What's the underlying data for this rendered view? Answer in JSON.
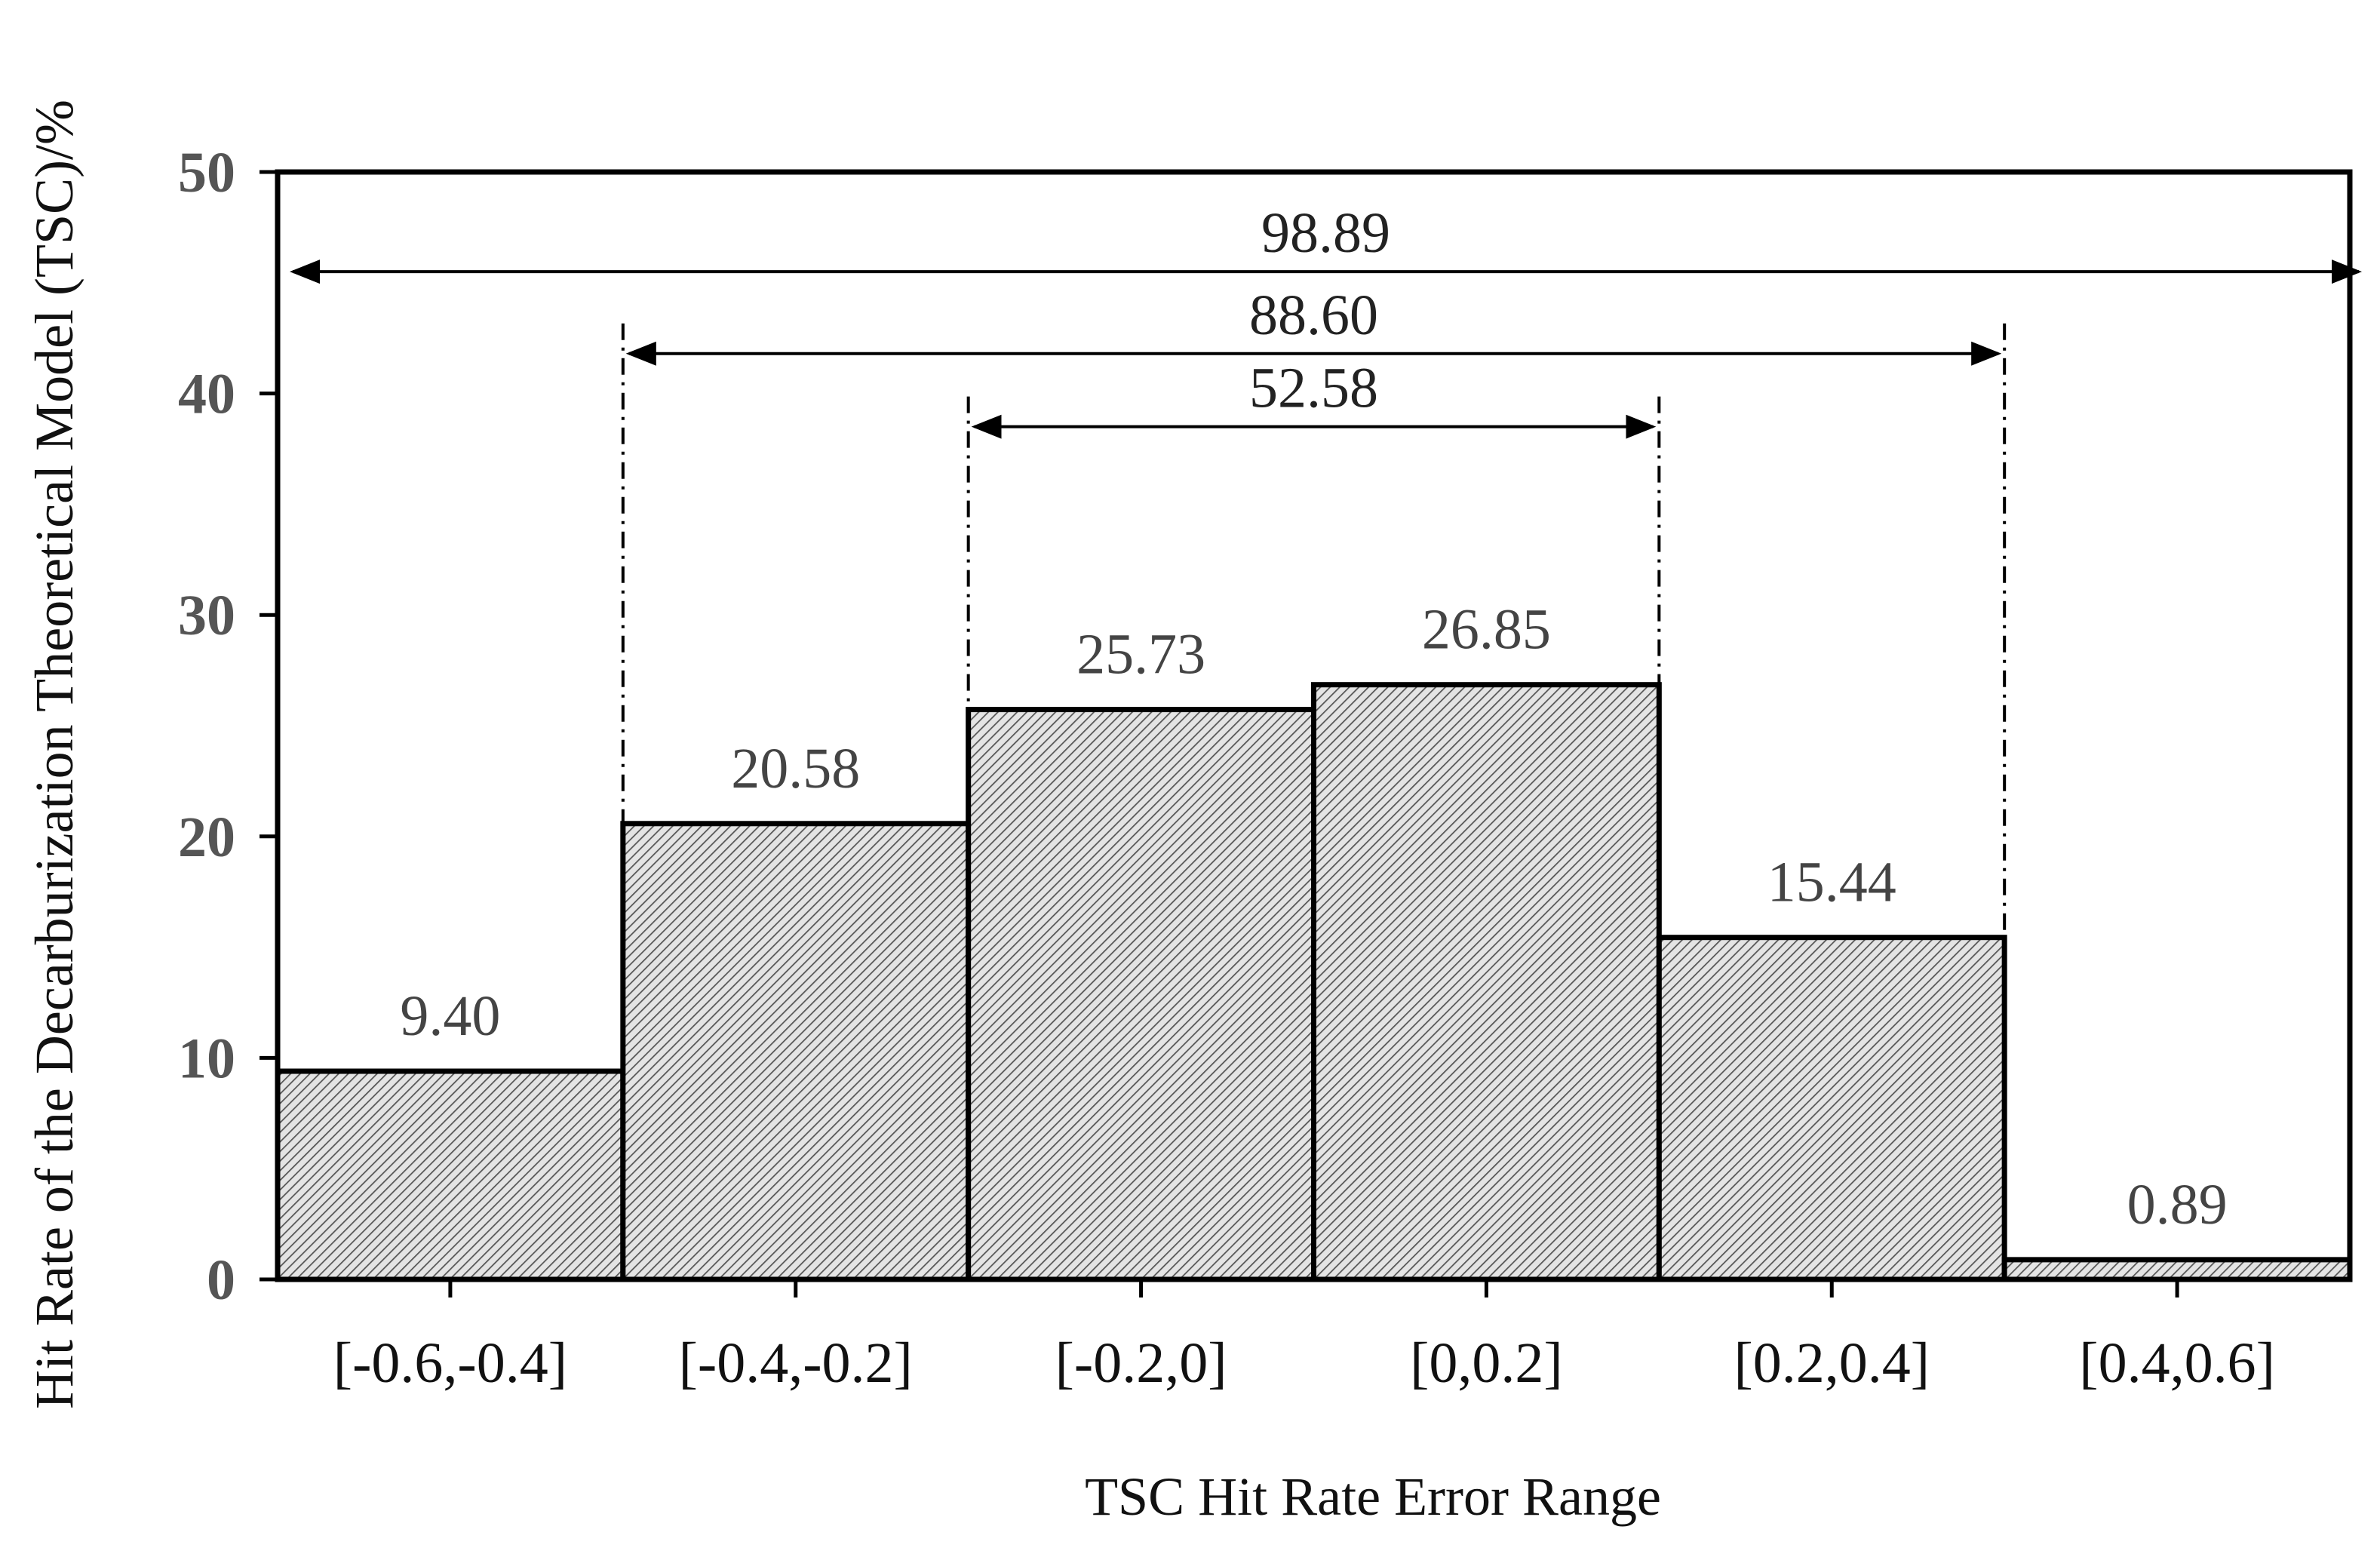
{
  "chart_data": {
    "type": "bar",
    "title": "",
    "xlabel": "TSC Hit Rate Error Range",
    "ylabel": "Hit Rate of the Decarburization Theoretical Model (TSC)/%",
    "categories": [
      "[-0.6,-0.4]",
      "[-0.4,-0.2]",
      "[-0.2,0]",
      "[0,0.2]",
      "[0.2,0.4]",
      "[0.4,0.6]"
    ],
    "values": [
      9.4,
      20.58,
      25.73,
      26.85,
      15.44,
      0.89
    ],
    "value_labels": [
      "9.40",
      "20.58",
      "25.73",
      "26.85",
      "15.44",
      "0.89"
    ],
    "ylim": [
      0,
      50
    ],
    "yticks": [
      "0",
      "10",
      "20",
      "30",
      "40",
      "50"
    ],
    "grid": false,
    "legend": "none",
    "bar_fill": "hatched",
    "spans": [
      {
        "label": "98.89",
        "from_category": 0,
        "to_category": 5,
        "y": 45.5,
        "start_value": 0,
        "end_value": 0
      },
      {
        "label": "88.60",
        "from_category": 1,
        "to_category": 4,
        "y": 41.8,
        "start_value": 20.58,
        "end_value": 15.44
      },
      {
        "label": "52.58",
        "from_category": 2,
        "to_category": 3,
        "y": 38.5,
        "start_value": 25.73,
        "end_value": 26.85
      }
    ]
  }
}
